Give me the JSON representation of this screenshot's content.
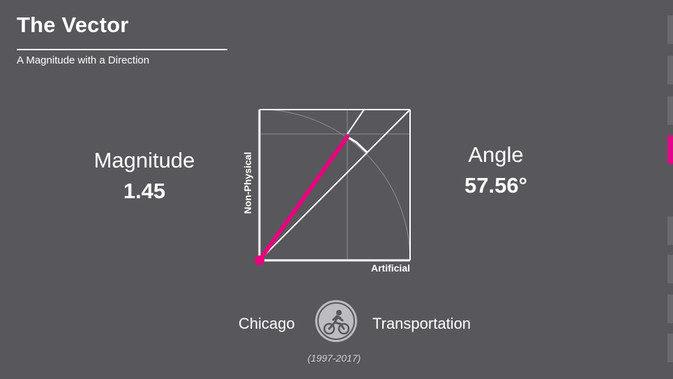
{
  "header": {
    "title": "The Vector",
    "subtitle": "A Magnitude with a Direction"
  },
  "magnitude": {
    "label": "Magnitude",
    "value": "1.45"
  },
  "angle": {
    "label": "Angle",
    "value": "57.56°"
  },
  "diagram": {
    "x_axis_label": "Artificial",
    "y_axis_label": "Non-Physical",
    "vector_magnitude": 1.45,
    "vector_angle_deg": 57.56,
    "vector_color": "#e8007e"
  },
  "footer": {
    "city": "Chicago",
    "category": "Transportation",
    "years": "(1997-2017)",
    "category_icon": "cyclist-icon"
  },
  "nav": {
    "active_index": 3,
    "accent_color": "#e0088a"
  }
}
